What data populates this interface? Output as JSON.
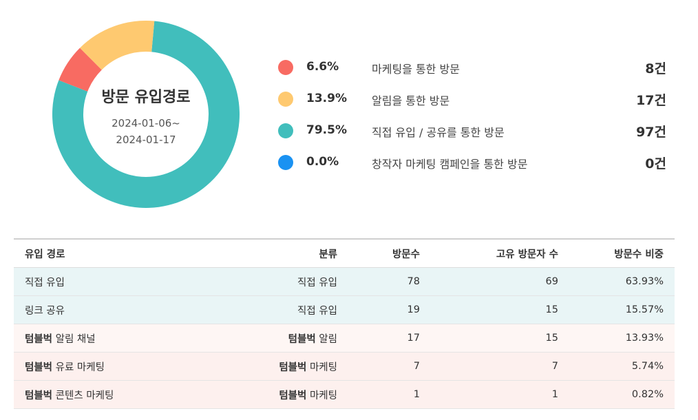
{
  "chart_data": {
    "type": "pie",
    "title": "방문 유입경로",
    "subtitle_lines": [
      "2024-01-06~",
      "2024-01-17"
    ],
    "slices": [
      {
        "percent_label": "6.6%",
        "percent": 6.6,
        "label": "마케팅을 통한 방문",
        "count_label": "8건",
        "count": 8,
        "color": "#f86b62"
      },
      {
        "percent_label": "13.9%",
        "percent": 13.9,
        "label": "알림을 통한 방문",
        "count_label": "17건",
        "count": 17,
        "color": "#fec970"
      },
      {
        "percent_label": "79.5%",
        "percent": 79.5,
        "label": "직접 유입 / 공유를 통한 방문",
        "count_label": "97건",
        "count": 97,
        "color": "#41bebc"
      },
      {
        "percent_label": "0.0%",
        "percent": 0.0,
        "label": "창작자 마케팅 캠페인을 통한 방문",
        "count_label": "0건",
        "count": 0,
        "color": "#1a92f2"
      }
    ]
  },
  "table": {
    "headers": [
      "유입 경로",
      "분류",
      "방문수",
      "고유 방문자 수",
      "방문수 비중"
    ],
    "rows": [
      {
        "source_brand": "",
        "source_rest": "직접 유입",
        "category_brand": "",
        "category_rest": "직접 유입",
        "visits": "78",
        "unique": "69",
        "share": "63.93%"
      },
      {
        "source_brand": "",
        "source_rest": "링크 공유",
        "category_brand": "",
        "category_rest": "직접 유입",
        "visits": "19",
        "unique": "15",
        "share": "15.57%"
      },
      {
        "source_brand": "텀블벅",
        "source_rest": " 알림 채널",
        "category_brand": "텀블벅",
        "category_rest": " 알림",
        "visits": "17",
        "unique": "15",
        "share": "13.93%"
      },
      {
        "source_brand": "텀블벅",
        "source_rest": " 유료 마케팅",
        "category_brand": "텀블벅",
        "category_rest": " 마케팅",
        "visits": "7",
        "unique": "7",
        "share": "5.74%"
      },
      {
        "source_brand": "텀블벅",
        "source_rest": " 콘텐츠 마케팅",
        "category_brand": "텀블벅",
        "category_rest": " 마케팅",
        "visits": "1",
        "unique": "1",
        "share": "0.82%"
      }
    ]
  }
}
